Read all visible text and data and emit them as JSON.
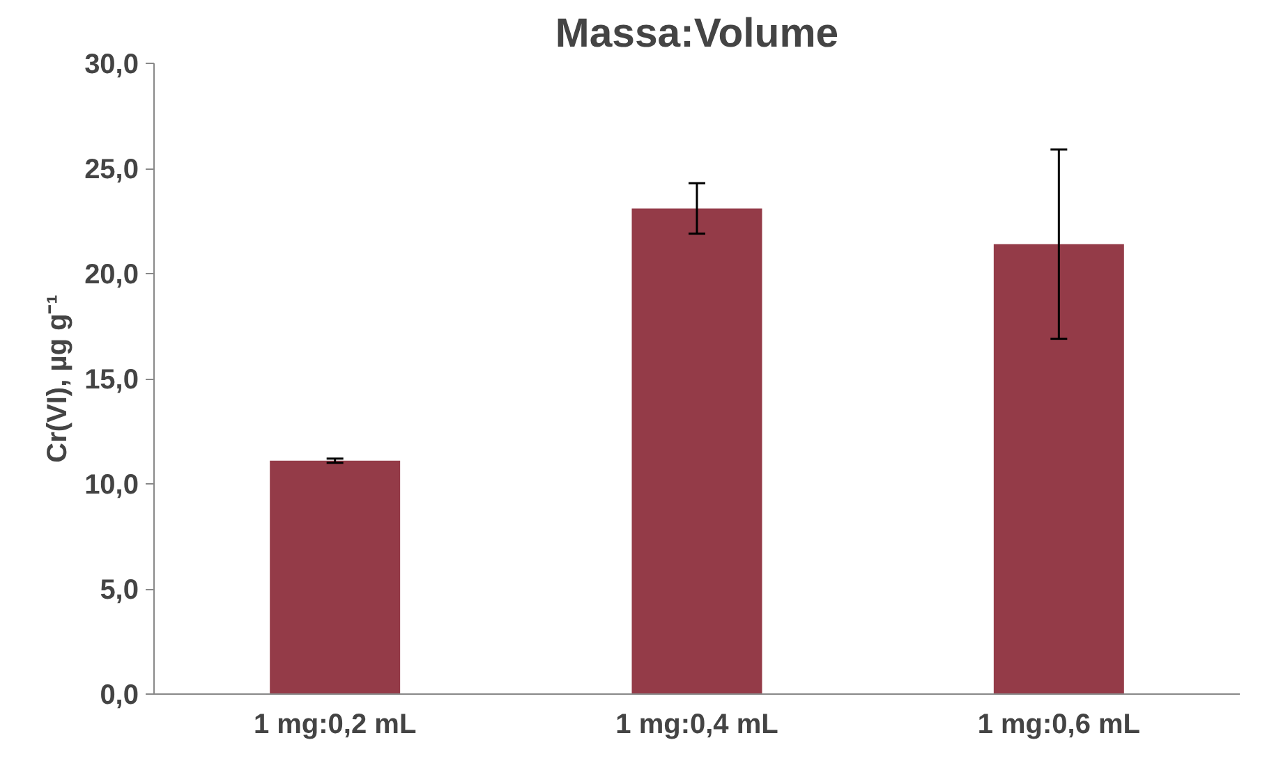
{
  "chart_data": {
    "type": "bar",
    "title": "Massa:Volume",
    "ylabel": "Cr(VI), µg g⁻¹",
    "categories": [
      "1 mg:0,2 mL",
      "1 mg:0,4 mL",
      "1 mg:0,6 mL"
    ],
    "values": [
      11.1,
      23.1,
      21.4
    ],
    "errors": [
      0.1,
      1.2,
      4.5
    ],
    "color": "#943b48",
    "ylim": [
      0,
      30
    ],
    "yticks": [
      {
        "value": 0,
        "label": "0,0"
      },
      {
        "value": 5,
        "label": "5,0"
      },
      {
        "value": 10,
        "label": "10,0"
      },
      {
        "value": 15,
        "label": "15,0"
      },
      {
        "value": 20,
        "label": "20,0"
      },
      {
        "value": 25,
        "label": "25,0"
      },
      {
        "value": 30,
        "label": "30,0"
      }
    ],
    "grid": false
  }
}
